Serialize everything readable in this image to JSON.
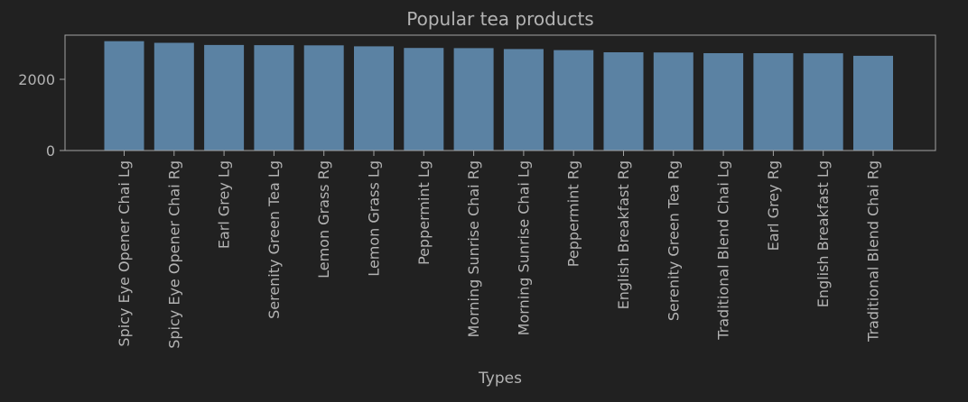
{
  "chart_data": {
    "type": "bar",
    "title": "Popular tea products",
    "xlabel": "Types",
    "ylabel": "",
    "categories": [
      "Spicy Eye Opener Chai Lg",
      "Spicy Eye Opener Chai Rg",
      "Earl Grey Lg",
      "Serenity Green Tea Lg",
      "Lemon Grass Rg",
      "Lemon Grass Lg",
      "Peppermint Lg",
      "Morning Sunrise Chai Rg",
      "Morning Sunrise Chai Lg",
      "Peppermint Rg",
      "English Breakfast Rg",
      "Serenity Green Tea Rg",
      "Traditional Blend Chai Lg",
      "Earl Grey Rg",
      "English Breakfast Lg",
      "Traditional Blend Chai Rg"
    ],
    "values": [
      3070,
      3025,
      2965,
      2960,
      2955,
      2925,
      2880,
      2875,
      2850,
      2820,
      2760,
      2755,
      2735,
      2735,
      2730,
      2660
    ],
    "ylim": [
      0,
      3240
    ],
    "yticks": [
      0,
      2000
    ],
    "ytick_labels": [
      "0",
      "2000"
    ],
    "grid": false,
    "legend": "none",
    "colors": {
      "background": "#212121",
      "bar": "#5b82a3",
      "axis": "#a3a3a3",
      "text": "#b3b3b3"
    }
  }
}
